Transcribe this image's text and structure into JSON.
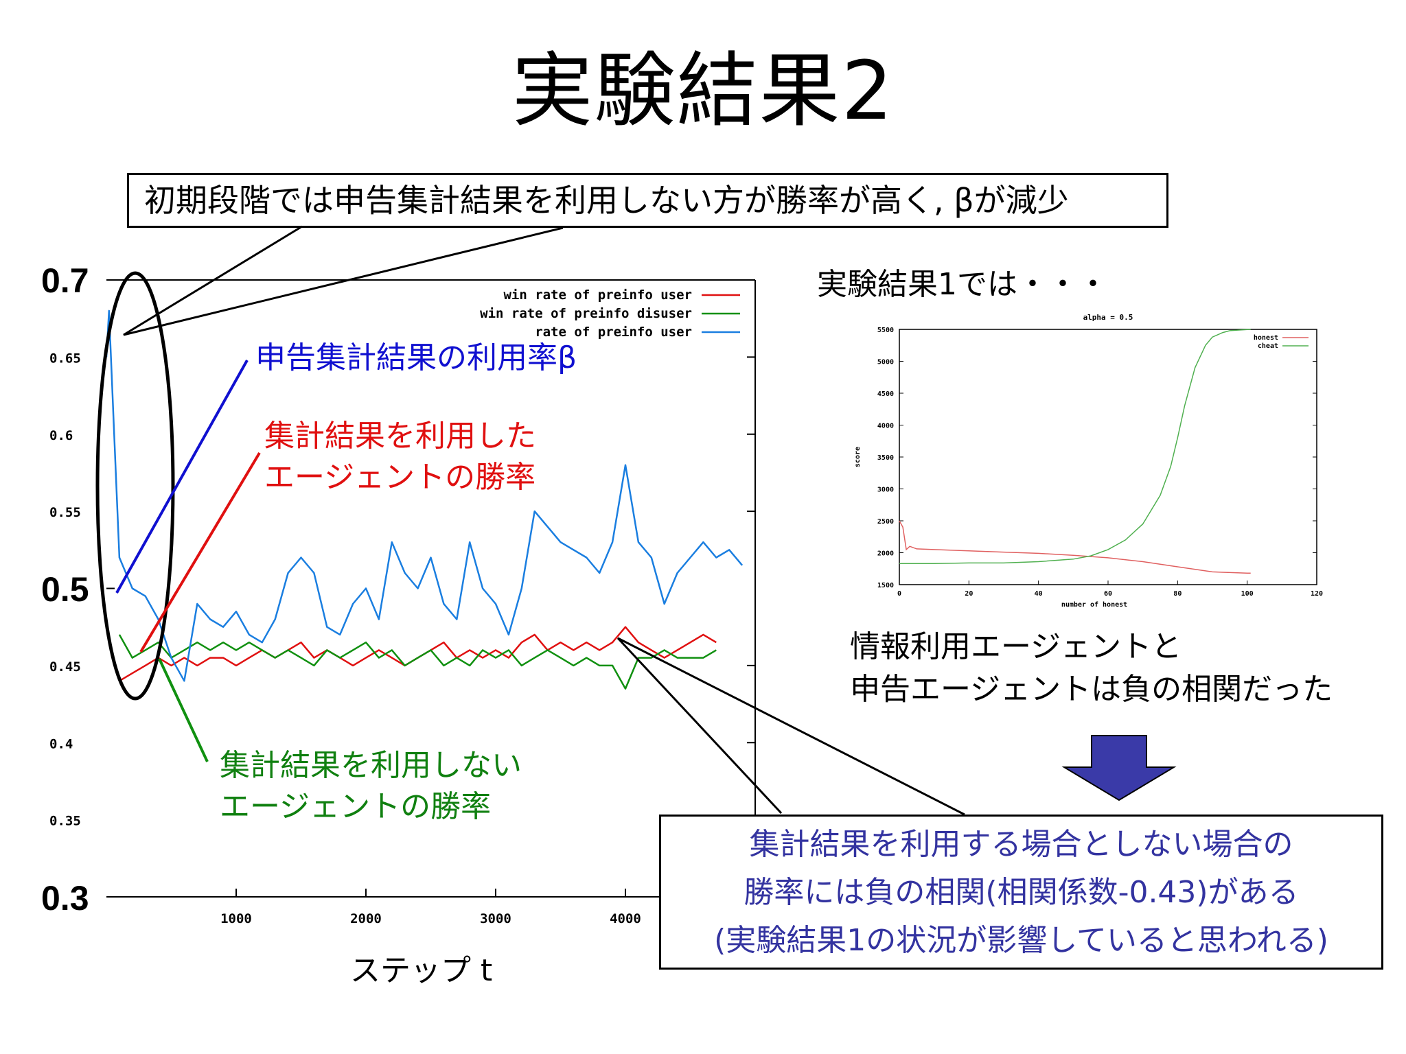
{
  "slide": {
    "title": "実験結果2",
    "top_callout": "初期段階では申告集計結果を利用しない方が勝率が高く, βが減少",
    "annotations": {
      "beta": "申告集計結果の利用率β",
      "user_line1": "集計結果を利用した",
      "user_line2": "エージェントの勝率",
      "disuser_line1": "集計結果を利用しない",
      "disuser_line2": "エージェントの勝率"
    },
    "x_axis_label": "ステップ t",
    "exp1_note": "実験結果1では・・・",
    "correlation_note_line1": "情報利用エージェントと",
    "correlation_note_line2": "申告エージェントは負の相関だった",
    "bottom_callout": [
      "集計結果を利用する場合としない場合の",
      "勝率には負の相関(相関係数-0.43)がある",
      "(実験結果1の状況が影響していると思われる)"
    ],
    "big_y_labels": [
      "0.7",
      "0.5",
      "0.3"
    ]
  },
  "colors": {
    "red": "#e01010",
    "green": "#109010",
    "blue": "#1a7ee0",
    "arrow": "#3a3aa8",
    "small_red": "#e06060",
    "small_green": "#50b050"
  },
  "chart_data": [
    {
      "type": "line",
      "title": "",
      "xlabel": "ステップ t",
      "ylabel": "",
      "xlim": [
        0,
        5000
      ],
      "ylim": [
        0.3,
        0.7
      ],
      "x_ticks": [
        "1000",
        "2000",
        "3000",
        "4000"
      ],
      "y_ticks": [
        "0.65",
        "0.6",
        "0.55",
        "0.45",
        "0.4",
        "0.35"
      ],
      "legend": "top-right",
      "series": [
        {
          "name": "win rate of preinfo user",
          "color": "#e01010",
          "x": [
            100,
            200,
            300,
            400,
            500,
            600,
            700,
            800,
            900,
            1000,
            1100,
            1200,
            1300,
            1400,
            1500,
            1600,
            1700,
            1800,
            1900,
            2000,
            2100,
            2200,
            2300,
            2400,
            2500,
            2600,
            2700,
            2800,
            2900,
            3000,
            3100,
            3200,
            3300,
            3400,
            3500,
            3600,
            3700,
            3800,
            3900,
            4000,
            4100,
            4200,
            4300,
            4400,
            4500,
            4600,
            4700
          ],
          "values": [
            0.44,
            0.445,
            0.45,
            0.455,
            0.45,
            0.455,
            0.45,
            0.455,
            0.455,
            0.45,
            0.455,
            0.46,
            0.455,
            0.46,
            0.465,
            0.455,
            0.46,
            0.455,
            0.45,
            0.455,
            0.46,
            0.455,
            0.45,
            0.455,
            0.46,
            0.465,
            0.455,
            0.46,
            0.455,
            0.46,
            0.455,
            0.465,
            0.47,
            0.46,
            0.465,
            0.46,
            0.465,
            0.46,
            0.465,
            0.475,
            0.465,
            0.46,
            0.455,
            0.46,
            0.465,
            0.47,
            0.465
          ]
        },
        {
          "name": "win rate of preinfo disuser",
          "color": "#109010",
          "x": [
            100,
            200,
            300,
            400,
            500,
            600,
            700,
            800,
            900,
            1000,
            1100,
            1200,
            1300,
            1400,
            1500,
            1600,
            1700,
            1800,
            1900,
            2000,
            2100,
            2200,
            2300,
            2400,
            2500,
            2600,
            2700,
            2800,
            2900,
            3000,
            3100,
            3200,
            3300,
            3400,
            3500,
            3600,
            3700,
            3800,
            3900,
            4000,
            4100,
            4200,
            4300,
            4400,
            4500,
            4600,
            4700
          ],
          "values": [
            0.47,
            0.455,
            0.46,
            0.465,
            0.455,
            0.46,
            0.465,
            0.46,
            0.465,
            0.46,
            0.465,
            0.46,
            0.455,
            0.46,
            0.455,
            0.45,
            0.46,
            0.455,
            0.46,
            0.465,
            0.455,
            0.46,
            0.45,
            0.455,
            0.46,
            0.45,
            0.455,
            0.45,
            0.46,
            0.455,
            0.46,
            0.45,
            0.455,
            0.46,
            0.455,
            0.45,
            0.455,
            0.45,
            0.45,
            0.435,
            0.455,
            0.455,
            0.46,
            0.455,
            0.455,
            0.455,
            0.46
          ]
        },
        {
          "name": "rate of preinfo user",
          "color": "#1a7ee0",
          "x": [
            0,
            20,
            60,
            100,
            200,
            300,
            400,
            500,
            600,
            700,
            800,
            900,
            1000,
            1100,
            1200,
            1300,
            1400,
            1500,
            1600,
            1700,
            1800,
            1900,
            2000,
            2100,
            2200,
            2300,
            2400,
            2500,
            2600,
            2700,
            2800,
            2900,
            3000,
            3100,
            3200,
            3300,
            3400,
            3500,
            3600,
            3700,
            3800,
            3900,
            4000,
            4100,
            4200,
            4300,
            4400,
            4500,
            4600,
            4700,
            4800,
            4900
          ],
          "values": [
            0.65,
            0.68,
            0.6,
            0.52,
            0.5,
            0.495,
            0.48,
            0.455,
            0.44,
            0.49,
            0.48,
            0.475,
            0.485,
            0.47,
            0.465,
            0.48,
            0.51,
            0.52,
            0.51,
            0.475,
            0.47,
            0.49,
            0.5,
            0.48,
            0.53,
            0.51,
            0.5,
            0.52,
            0.49,
            0.48,
            0.53,
            0.5,
            0.49,
            0.47,
            0.5,
            0.55,
            0.54,
            0.53,
            0.525,
            0.52,
            0.51,
            0.53,
            0.58,
            0.53,
            0.52,
            0.49,
            0.51,
            0.52,
            0.53,
            0.52,
            0.525,
            0.515
          ]
        }
      ]
    },
    {
      "type": "line",
      "title": "alpha = 0.5",
      "xlabel": "number of honest",
      "ylabel": "score",
      "xlim": [
        0,
        120
      ],
      "ylim": [
        1500,
        5500
      ],
      "x_ticks": [
        "0",
        "20",
        "40",
        "60",
        "80",
        "100",
        "120"
      ],
      "y_ticks": [
        "1500",
        "2000",
        "2500",
        "3000",
        "3500",
        "4000",
        "4500",
        "5000",
        "5500"
      ],
      "legend": "top-right",
      "series": [
        {
          "name": "honest",
          "color": "#e06060",
          "x": [
            0,
            1,
            2,
            3,
            5,
            10,
            20,
            30,
            40,
            50,
            60,
            70,
            80,
            90,
            100,
            101
          ],
          "values": [
            2500,
            2400,
            2050,
            2100,
            2060,
            2050,
            2030,
            2010,
            1990,
            1960,
            1920,
            1860,
            1780,
            1700,
            1680,
            1680
          ]
        },
        {
          "name": "cheat",
          "color": "#50b050",
          "x": [
            0,
            10,
            20,
            30,
            40,
            50,
            55,
            60,
            65,
            70,
            75,
            78,
            80,
            82,
            85,
            88,
            90,
            93,
            95,
            98,
            101
          ],
          "values": [
            1830,
            1830,
            1840,
            1840,
            1860,
            1900,
            1950,
            2050,
            2200,
            2450,
            2900,
            3350,
            3800,
            4300,
            4900,
            5250,
            5380,
            5450,
            5480,
            5490,
            5500
          ]
        }
      ]
    }
  ]
}
